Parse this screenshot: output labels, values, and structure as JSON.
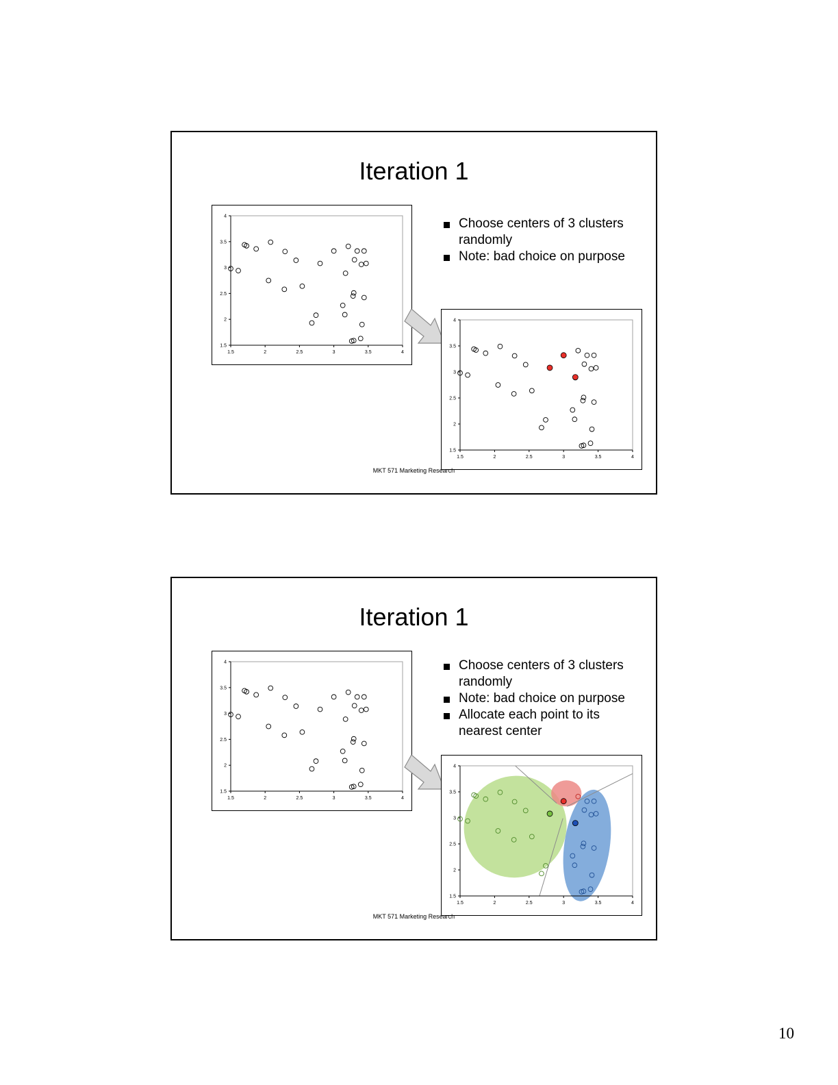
{
  "page_number": "10",
  "slides": [
    {
      "title": "Iteration 1",
      "bullets": [
        "Choose centers of 3 clusters randomly",
        "Note: bad choice on purpose"
      ],
      "footer": "MKT 571 Marketing Research"
    },
    {
      "title": "Iteration 1",
      "bullets": [
        "Choose centers of 3 clusters randomly",
        "Note: bad choice on purpose",
        "Allocate each point to its nearest center"
      ],
      "footer": "MKT 571 Marketing Research"
    }
  ],
  "chart_data": [
    {
      "type": "scatter",
      "x_ticks": [
        "1.5",
        "2",
        "2.5",
        "3",
        "3.5",
        "4"
      ],
      "y_ticks": [
        "1.5",
        "2",
        "2.5",
        "3",
        "3.5",
        "4"
      ],
      "xlim": [
        1.5,
        4
      ],
      "ylim": [
        1.5,
        4
      ],
      "points": [
        [
          1.5,
          2.98
        ],
        [
          1.61,
          2.94
        ],
        [
          1.7,
          3.44
        ],
        [
          1.73,
          3.42
        ],
        [
          1.87,
          3.36
        ],
        [
          2.05,
          2.75
        ],
        [
          2.08,
          3.49
        ],
        [
          2.28,
          2.58
        ],
        [
          2.29,
          3.31
        ],
        [
          2.45,
          3.14
        ],
        [
          2.54,
          2.64
        ],
        [
          2.68,
          1.93
        ],
        [
          2.74,
          2.08
        ],
        [
          2.8,
          3.08
        ],
        [
          3.0,
          3.32
        ],
        [
          3.13,
          2.27
        ],
        [
          3.16,
          2.09
        ],
        [
          3.17,
          2.89
        ],
        [
          3.21,
          3.41
        ],
        [
          3.26,
          1.58
        ],
        [
          3.29,
          1.59
        ],
        [
          3.29,
          2.51
        ],
        [
          3.28,
          2.45
        ],
        [
          3.3,
          3.15
        ],
        [
          3.34,
          3.32
        ],
        [
          3.39,
          1.63
        ],
        [
          3.4,
          3.06
        ],
        [
          3.41,
          1.9
        ],
        [
          3.44,
          3.32
        ],
        [
          3.44,
          2.42
        ],
        [
          3.47,
          3.08
        ]
      ]
    },
    {
      "type": "scatter",
      "x_ticks": [
        "1.5",
        "2",
        "2.5",
        "3",
        "3.5",
        "4"
      ],
      "y_ticks": [
        "1.5",
        "2",
        "2.5",
        "3",
        "3.5",
        "4"
      ],
      "xlim": [
        1.5,
        4
      ],
      "ylim": [
        1.5,
        4
      ],
      "points": [
        [
          1.5,
          2.98
        ],
        [
          1.61,
          2.94
        ],
        [
          1.7,
          3.44
        ],
        [
          1.73,
          3.42
        ],
        [
          1.87,
          3.36
        ],
        [
          2.05,
          2.75
        ],
        [
          2.08,
          3.49
        ],
        [
          2.28,
          2.58
        ],
        [
          2.29,
          3.31
        ],
        [
          2.45,
          3.14
        ],
        [
          2.54,
          2.64
        ],
        [
          2.68,
          1.93
        ],
        [
          2.74,
          2.08
        ],
        [
          2.8,
          3.08
        ],
        [
          3.0,
          3.32
        ],
        [
          3.13,
          2.27
        ],
        [
          3.16,
          2.09
        ],
        [
          3.17,
          2.89
        ],
        [
          3.21,
          3.41
        ],
        [
          3.26,
          1.58
        ],
        [
          3.29,
          1.59
        ],
        [
          3.29,
          2.51
        ],
        [
          3.28,
          2.45
        ],
        [
          3.3,
          3.15
        ],
        [
          3.34,
          3.32
        ],
        [
          3.39,
          1.63
        ],
        [
          3.4,
          3.06
        ],
        [
          3.41,
          1.9
        ],
        [
          3.44,
          3.32
        ],
        [
          3.44,
          2.42
        ],
        [
          3.47,
          3.08
        ]
      ],
      "centers": [
        {
          "x": 2.8,
          "y": 3.08,
          "color": "#e8302a"
        },
        {
          "x": 3.0,
          "y": 3.32,
          "color": "#e8302a"
        },
        {
          "x": 3.17,
          "y": 2.9,
          "color": "#e8302a"
        }
      ]
    },
    {
      "type": "scatter",
      "x_ticks": [
        "1.5",
        "2",
        "2.5",
        "3",
        "3.5",
        "4"
      ],
      "y_ticks": [
        "1.5",
        "2",
        "2.5",
        "3",
        "3.5",
        "4"
      ],
      "xlim": [
        1.5,
        4
      ],
      "ylim": [
        1.5,
        4
      ],
      "points": [
        [
          1.5,
          2.98
        ],
        [
          1.61,
          2.94
        ],
        [
          1.7,
          3.44
        ],
        [
          1.73,
          3.42
        ],
        [
          1.87,
          3.36
        ],
        [
          2.05,
          2.75
        ],
        [
          2.08,
          3.49
        ],
        [
          2.28,
          2.58
        ],
        [
          2.29,
          3.31
        ],
        [
          2.45,
          3.14
        ],
        [
          2.54,
          2.64
        ],
        [
          2.68,
          1.93
        ],
        [
          2.74,
          2.08
        ],
        [
          2.8,
          3.08
        ],
        [
          3.0,
          3.32
        ],
        [
          3.13,
          2.27
        ],
        [
          3.16,
          2.09
        ],
        [
          3.17,
          2.89
        ],
        [
          3.21,
          3.41
        ],
        [
          3.26,
          1.58
        ],
        [
          3.29,
          1.59
        ],
        [
          3.29,
          2.51
        ],
        [
          3.28,
          2.45
        ],
        [
          3.3,
          3.15
        ],
        [
          3.34,
          3.32
        ],
        [
          3.39,
          1.63
        ],
        [
          3.4,
          3.06
        ],
        [
          3.41,
          1.9
        ],
        [
          3.44,
          3.32
        ],
        [
          3.44,
          2.42
        ],
        [
          3.47,
          3.08
        ]
      ]
    },
    {
      "type": "scatter",
      "x_ticks": [
        "1.5",
        "2",
        "2.5",
        "3",
        "3.5",
        "4"
      ],
      "y_ticks": [
        "1.5",
        "2",
        "2.5",
        "3",
        "3.5",
        "4"
      ],
      "xlim": [
        1.5,
        4
      ],
      "ylim": [
        1.5,
        4
      ],
      "points": [
        {
          "x": 1.5,
          "y": 2.98,
          "cluster": "green"
        },
        {
          "x": 1.61,
          "y": 2.94,
          "cluster": "green"
        },
        {
          "x": 1.7,
          "y": 3.44,
          "cluster": "green"
        },
        {
          "x": 1.73,
          "y": 3.42,
          "cluster": "green"
        },
        {
          "x": 1.87,
          "y": 3.36,
          "cluster": "green"
        },
        {
          "x": 2.05,
          "y": 2.75,
          "cluster": "green"
        },
        {
          "x": 2.08,
          "y": 3.49,
          "cluster": "green"
        },
        {
          "x": 2.28,
          "y": 2.58,
          "cluster": "green"
        },
        {
          "x": 2.29,
          "y": 3.31,
          "cluster": "green"
        },
        {
          "x": 2.45,
          "y": 3.14,
          "cluster": "green"
        },
        {
          "x": 2.54,
          "y": 2.64,
          "cluster": "green"
        },
        {
          "x": 2.68,
          "y": 1.93,
          "cluster": "green"
        },
        {
          "x": 2.74,
          "y": 2.08,
          "cluster": "green"
        },
        {
          "x": 3.21,
          "y": 3.41,
          "cluster": "red"
        },
        {
          "x": 3.13,
          "y": 2.27,
          "cluster": "blue"
        },
        {
          "x": 3.16,
          "y": 2.09,
          "cluster": "blue"
        },
        {
          "x": 3.26,
          "y": 1.58,
          "cluster": "blue"
        },
        {
          "x": 3.29,
          "y": 1.59,
          "cluster": "blue"
        },
        {
          "x": 3.29,
          "y": 2.51,
          "cluster": "blue"
        },
        {
          "x": 3.28,
          "y": 2.45,
          "cluster": "blue"
        },
        {
          "x": 3.3,
          "y": 3.15,
          "cluster": "blue"
        },
        {
          "x": 3.34,
          "y": 3.32,
          "cluster": "blue"
        },
        {
          "x": 3.39,
          "y": 1.63,
          "cluster": "blue"
        },
        {
          "x": 3.4,
          "y": 3.06,
          "cluster": "blue"
        },
        {
          "x": 3.41,
          "y": 1.9,
          "cluster": "blue"
        },
        {
          "x": 3.44,
          "y": 3.32,
          "cluster": "blue"
        },
        {
          "x": 3.44,
          "y": 2.42,
          "cluster": "blue"
        },
        {
          "x": 3.47,
          "y": 3.08,
          "cluster": "blue"
        }
      ],
      "centers": [
        {
          "x": 2.8,
          "y": 3.08,
          "cluster": "green"
        },
        {
          "x": 3.0,
          "y": 3.32,
          "cluster": "red"
        },
        {
          "x": 3.17,
          "y": 2.9,
          "cluster": "blue"
        }
      ],
      "boundaries": [
        {
          "from": [
            2.3,
            4.0
          ],
          "to": [
            2.9,
            3.28
          ]
        },
        {
          "from": [
            2.99,
            2.99
          ],
          "to": [
            2.65,
            1.5
          ]
        },
        {
          "from": [
            3.05,
            3.22
          ],
          "to": [
            4.0,
            3.85
          ]
        }
      ],
      "cluster_regions": [
        {
          "cluster": "green",
          "cx": 2.3,
          "cy": 2.83,
          "rx": 0.75,
          "ry": 0.97,
          "rotate": -34
        },
        {
          "cluster": "red",
          "cx": 3.04,
          "cy": 3.47,
          "rx": 0.22,
          "ry": 0.25,
          "rotate": 0
        },
        {
          "cluster": "blue",
          "cx": 3.34,
          "cy": 2.47,
          "rx": 0.33,
          "ry": 1.08,
          "rotate": 8
        }
      ],
      "colors": {
        "green_fill": "#b9dd8c",
        "green_stroke": "#4f8a2a",
        "green_center": "#79c142",
        "red_fill": "#ec8a86",
        "red_stroke": "#c02a24",
        "red_center": "#e8302a",
        "blue_fill": "#6f9fd6",
        "blue_stroke": "#1f4f94",
        "blue_center": "#1c4fb5"
      }
    }
  ]
}
